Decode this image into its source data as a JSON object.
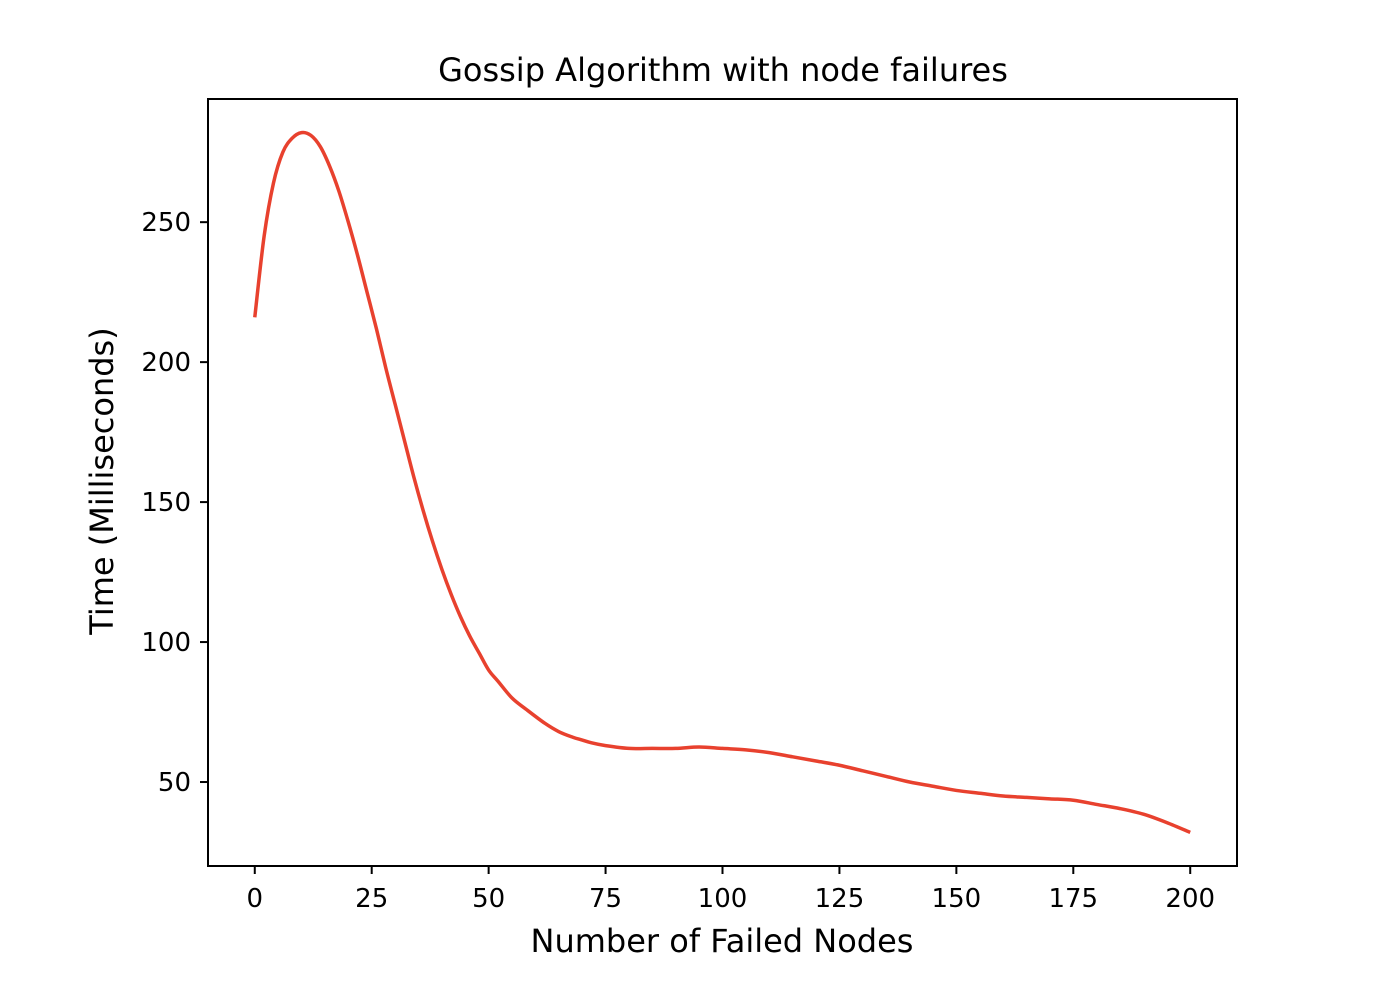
{
  "chart_data": {
    "type": "line",
    "title": "Gossip Algorithm with node failures",
    "xlabel": "Number of Failed Nodes",
    "ylabel": "Time (Milliseconds)",
    "xlim": [
      -10,
      210
    ],
    "ylim": [
      20,
      294
    ],
    "xticks": [
      0,
      25,
      50,
      75,
      100,
      125,
      150,
      175,
      200
    ],
    "yticks": [
      50,
      100,
      150,
      200,
      250
    ],
    "grid": false,
    "colors": {
      "line": "#e8412e",
      "axes": "#000000"
    },
    "series": [
      {
        "x": [
          0,
          2,
          4,
          6,
          8,
          10,
          12,
          14,
          16,
          18,
          20,
          22,
          24,
          26,
          28,
          30,
          32,
          34,
          36,
          38,
          40,
          42,
          44,
          46,
          48,
          50,
          52,
          55,
          58,
          62,
          65,
          68,
          70,
          72,
          75,
          80,
          85,
          90,
          95,
          100,
          105,
          110,
          115,
          120,
          125,
          130,
          135,
          140,
          145,
          150,
          155,
          160,
          165,
          170,
          175,
          180,
          185,
          190,
          195,
          200
        ],
        "values": [
          216,
          245,
          264,
          275,
          280,
          282,
          281,
          277,
          270,
          261,
          250,
          238,
          225,
          212,
          198,
          185,
          172,
          159,
          147,
          136,
          126,
          117,
          109,
          102,
          96,
          90,
          86,
          80,
          76,
          71,
          68,
          66,
          65,
          64,
          63,
          62,
          62,
          62,
          62.5,
          62,
          61.5,
          60.5,
          59,
          57.5,
          56,
          54,
          52,
          50,
          48.5,
          47,
          46,
          45,
          44.5,
          44,
          43.5,
          42,
          40.5,
          38.5,
          35.5,
          32
        ]
      }
    ]
  }
}
